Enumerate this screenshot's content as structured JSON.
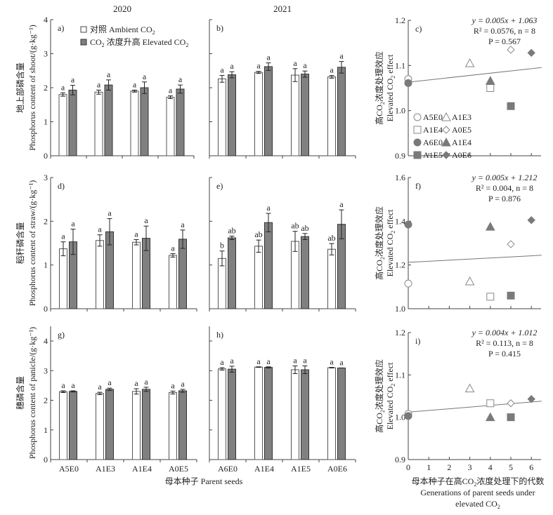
{
  "figure": {
    "col_titles": [
      "2020",
      "2021"
    ],
    "legend": {
      "ambient": "对照 Ambient CO",
      "ambient_sub": "2",
      "elevated_pre": "CO",
      "elevated_sub": "2",
      "elevated_post": " 浓度升高 Elevated CO",
      "elevated_sub2": "2"
    },
    "bar_xlabel": "母本种子 Parent seeds",
    "scatter_xlabel_line1_pre": "母本种子在高CO",
    "scatter_xlabel_line1_sub": "2",
    "scatter_xlabel_line1_post": "浓度处理下的代数",
    "scatter_xlabel_line2": "Generations of parent seeds under",
    "scatter_xlabel_line3_pre": "elevated CO",
    "scatter_xlabel_line3_sub": "2",
    "scatter_ylabel_cn_pre": "高CO",
    "scatter_ylabel_cn_sub": "2",
    "scatter_ylabel_cn_post": "浓度处理效应",
    "scatter_ylabel_en_pre": "Elevated CO",
    "scatter_ylabel_en_sub": "2",
    "scatter_ylabel_en_post": " effect",
    "scatter_legend": [
      {
        "label": "A5E0",
        "marker": "circle-open"
      },
      {
        "label": "A1E3",
        "marker": "triangle-open"
      },
      {
        "label": "A1E4",
        "marker": "square-open"
      },
      {
        "label": "A0E5",
        "marker": "diamond-open"
      },
      {
        "label": "A6E0",
        "marker": "circle-filled"
      },
      {
        "label": "A1E4",
        "marker": "triangle-filled"
      },
      {
        "label": "A1E5",
        "marker": "square-filled"
      },
      {
        "label": "A0E6",
        "marker": "diamond-filled"
      }
    ],
    "colors": {
      "filled": "#7a7a7a",
      "open_stroke": "#888888",
      "axis": "#444444",
      "bar_dark": "#808080"
    }
  },
  "chart_data": [
    {
      "id": "a",
      "panel_label": "a)",
      "type": "bar",
      "year": "2020",
      "ylabel_cn": "地上部磷含量",
      "ylabel_en": "Phosphorus content of shoot/(g·kg⁻¹)",
      "ylim": [
        0,
        4
      ],
      "yticks": [
        "0",
        "1",
        "2",
        "3",
        "4"
      ],
      "categories": [
        "A5E0",
        "A1E3",
        "A1E4",
        "A0E5"
      ],
      "series": [
        {
          "name": "Ambient CO2",
          "values": [
            1.8,
            1.87,
            1.9,
            1.72
          ],
          "err": [
            0.05,
            0.06,
            0.03,
            0.04
          ],
          "letters": [
            "a",
            "a",
            "a",
            "a"
          ]
        },
        {
          "name": "Elevated CO2",
          "values": [
            1.93,
            2.08,
            2.0,
            1.96
          ],
          "err": [
            0.14,
            0.15,
            0.17,
            0.12
          ],
          "letters": [
            "a",
            "a",
            "a",
            "a"
          ]
        }
      ]
    },
    {
      "id": "b",
      "panel_label": "b)",
      "type": "bar",
      "year": "2021",
      "ylim": [
        0,
        4
      ],
      "yticks": [
        "0",
        "1",
        "2",
        "3",
        "4"
      ],
      "categories": [
        "A6E0",
        "A1E4",
        "A1E5",
        "A0E6"
      ],
      "series": [
        {
          "name": "Ambient CO2",
          "values": [
            2.26,
            2.45,
            2.37,
            2.32
          ],
          "err": [
            0.1,
            0.03,
            0.19,
            0.04
          ],
          "letters": [
            "a",
            "a",
            "a",
            "a"
          ]
        },
        {
          "name": "Elevated CO2",
          "values": [
            2.38,
            2.62,
            2.4,
            2.6
          ],
          "err": [
            0.09,
            0.11,
            0.09,
            0.17
          ],
          "letters": [
            "a",
            "a",
            "a",
            "a"
          ]
        }
      ]
    },
    {
      "id": "c",
      "panel_label": "c)",
      "type": "scatter",
      "ylim": [
        0.9,
        1.2
      ],
      "yticks": [
        "0.9",
        "1.0",
        "1.1",
        "1.2"
      ],
      "xlim": [
        0,
        6.5
      ],
      "xticks": [
        "0",
        "1",
        "2",
        "3",
        "4",
        "5",
        "6"
      ],
      "equation": "y = 0.005x + 1.063",
      "r2_text": "R² = 0.0576, n = 8",
      "p_text": "P = 0.567",
      "fit": {
        "slope": 0.005,
        "intercept": 1.063
      },
      "points": [
        {
          "label": "A5E0",
          "marker": "circle-open",
          "x": 0,
          "y": 1.07
        },
        {
          "label": "A6E0",
          "marker": "circle-filled",
          "x": 0,
          "y": 1.061
        },
        {
          "label": "A1E3",
          "marker": "triangle-open",
          "x": 3,
          "y": 1.105
        },
        {
          "label": "A1E4",
          "marker": "square-open",
          "x": 4,
          "y": 1.05
        },
        {
          "label": "A1E4",
          "marker": "triangle-filled",
          "x": 4,
          "y": 1.066
        },
        {
          "label": "A0E5",
          "marker": "diamond-open",
          "x": 5,
          "y": 1.135
        },
        {
          "label": "A1E5",
          "marker": "square-filled",
          "x": 5,
          "y": 1.01
        },
        {
          "label": "A0E6",
          "marker": "diamond-filled",
          "x": 6,
          "y": 1.128
        }
      ]
    },
    {
      "id": "d",
      "panel_label": "d)",
      "type": "bar",
      "year": "2020",
      "ylabel_cn": "稻秆磷含量",
      "ylabel_en": "Phosphorus content of straw/(g·kg⁻¹)",
      "ylim": [
        0,
        3
      ],
      "yticks": [
        "0",
        "1",
        "2",
        "3"
      ],
      "categories": [
        "A5E0",
        "A1E3",
        "A1E4",
        "A0E5"
      ],
      "series": [
        {
          "name": "Ambient CO2",
          "values": [
            1.37,
            1.56,
            1.52,
            1.22
          ],
          "err": [
            0.16,
            0.13,
            0.06,
            0.04
          ],
          "letters": [
            "a",
            "a",
            "a",
            "a"
          ]
        },
        {
          "name": "Elevated CO2",
          "values": [
            1.53,
            1.76,
            1.61,
            1.59
          ],
          "err": [
            0.29,
            0.3,
            0.28,
            0.21
          ],
          "letters": [
            "a",
            "a",
            "a",
            "a"
          ]
        }
      ]
    },
    {
      "id": "e",
      "panel_label": "e)",
      "type": "bar",
      "year": "2021",
      "ylim": [
        0,
        3
      ],
      "yticks": [
        "0",
        "1",
        "2",
        "3"
      ],
      "categories": [
        "A6E0",
        "A1E4",
        "A1E5",
        "A0E6"
      ],
      "series": [
        {
          "name": "Ambient CO2",
          "values": [
            1.15,
            1.43,
            1.54,
            1.36
          ],
          "err": [
            0.17,
            0.14,
            0.23,
            0.13
          ],
          "letters": [
            "b",
            "ab",
            "ab",
            "ab"
          ]
        },
        {
          "name": "Elevated CO2",
          "values": [
            1.62,
            1.97,
            1.65,
            1.93
          ],
          "err": [
            0.04,
            0.21,
            0.07,
            0.33
          ],
          "letters": [
            "ab",
            "a",
            "ab",
            "a"
          ]
        }
      ]
    },
    {
      "id": "f",
      "panel_label": "f)",
      "type": "scatter",
      "ylim": [
        1.0,
        1.6
      ],
      "yticks": [
        "1.0",
        "1.2",
        "1.4",
        "1.6"
      ],
      "xlim": [
        0,
        6.5
      ],
      "xticks": [
        "0",
        "1",
        "2",
        "3",
        "4",
        "5",
        "6"
      ],
      "equation": "y = 0.005x + 1.212",
      "r2_text": "R² = 0.004, n = 8",
      "p_text": "P = 0.876",
      "fit": {
        "slope": 0.005,
        "intercept": 1.212
      },
      "points": [
        {
          "label": "A6E0",
          "marker": "circle-filled",
          "x": 0,
          "y": 1.385
        },
        {
          "label": "A5E0",
          "marker": "circle-open",
          "x": 0,
          "y": 1.115
        },
        {
          "label": "A1E3",
          "marker": "triangle-open",
          "x": 3,
          "y": 1.125
        },
        {
          "label": "A1E4",
          "marker": "square-open",
          "x": 4,
          "y": 1.055
        },
        {
          "label": "A1E4",
          "marker": "triangle-filled",
          "x": 4,
          "y": 1.375
        },
        {
          "label": "A0E5",
          "marker": "diamond-open",
          "x": 5,
          "y": 1.295
        },
        {
          "label": "A1E5",
          "marker": "square-filled",
          "x": 5,
          "y": 1.06
        },
        {
          "label": "A0E6",
          "marker": "diamond-filled",
          "x": 6,
          "y": 1.405
        }
      ]
    },
    {
      "id": "g",
      "panel_label": "g)",
      "type": "bar",
      "year": "2020",
      "ylabel_cn": "穗磷含量",
      "ylabel_en": "Phosphorus content of panicle/(g·kg⁻¹)",
      "ylim": [
        0,
        4.5
      ],
      "yticks": [
        "0",
        "1",
        "2",
        "3",
        "4"
      ],
      "categories": [
        "A5E0",
        "A1E3",
        "A1E4",
        "A0E5"
      ],
      "series": [
        {
          "name": "Ambient CO2",
          "values": [
            2.29,
            2.23,
            2.3,
            2.26
          ],
          "err": [
            0.03,
            0.04,
            0.09,
            0.05
          ],
          "letters": [
            "a",
            "a",
            "a",
            "a"
          ]
        },
        {
          "name": "Elevated CO2",
          "values": [
            2.3,
            2.37,
            2.37,
            2.32
          ],
          "err": [
            0.02,
            0.04,
            0.07,
            0.05
          ],
          "letters": [
            "a",
            "a",
            "a",
            "a"
          ]
        }
      ]
    },
    {
      "id": "h",
      "panel_label": "h)",
      "type": "bar",
      "year": "2021",
      "ylim": [
        0,
        4.5
      ],
      "yticks": [
        "0",
        "1",
        "2",
        "3",
        "4"
      ],
      "categories": [
        "A6E0",
        "A1E4",
        "A1E5",
        "A0E6"
      ],
      "series": [
        {
          "name": "Ambient CO2",
          "values": [
            3.06,
            3.12,
            3.03,
            3.1
          ],
          "err": [
            0.04,
            0.01,
            0.13,
            0.01
          ],
          "letters": [
            "a",
            "a",
            "a",
            "a"
          ]
        },
        {
          "name": "Elevated CO2",
          "values": [
            3.05,
            3.11,
            3.03,
            3.09
          ],
          "err": [
            0.1,
            0.02,
            0.13,
            0.0
          ],
          "letters": [
            "a",
            "a",
            "a",
            "a"
          ]
        }
      ]
    },
    {
      "id": "i",
      "panel_label": "i)",
      "type": "scatter",
      "ylim": [
        0.9,
        1.2
      ],
      "yticks": [
        "0.9",
        "1.0",
        "1.1",
        "1.2"
      ],
      "xlim": [
        0,
        6.5
      ],
      "xticks": [
        "0",
        "1",
        "2",
        "3",
        "4",
        "5",
        "6"
      ],
      "equation": "y = 0.004x + 1.012",
      "r2_text": "R² = 0.113, n = 8",
      "p_text": "P = 0.415",
      "fit": {
        "slope": 0.004,
        "intercept": 1.012
      },
      "points": [
        {
          "label": "A5E0",
          "marker": "circle-open",
          "x": 0,
          "y": 1.008
        },
        {
          "label": "A6E0",
          "marker": "circle-filled",
          "x": 0,
          "y": 1.003
        },
        {
          "label": "A1E3",
          "marker": "triangle-open",
          "x": 3,
          "y": 1.068
        },
        {
          "label": "A1E4",
          "marker": "square-open",
          "x": 4,
          "y": 1.033
        },
        {
          "label": "A1E4",
          "marker": "triangle-filled",
          "x": 4,
          "y": 1.0
        },
        {
          "label": "A0E5",
          "marker": "diamond-open",
          "x": 5,
          "y": 1.033
        },
        {
          "label": "A1E5",
          "marker": "square-filled",
          "x": 5,
          "y": 1.0
        },
        {
          "label": "A0E6",
          "marker": "diamond-filled",
          "x": 6,
          "y": 1.043
        }
      ]
    }
  ]
}
